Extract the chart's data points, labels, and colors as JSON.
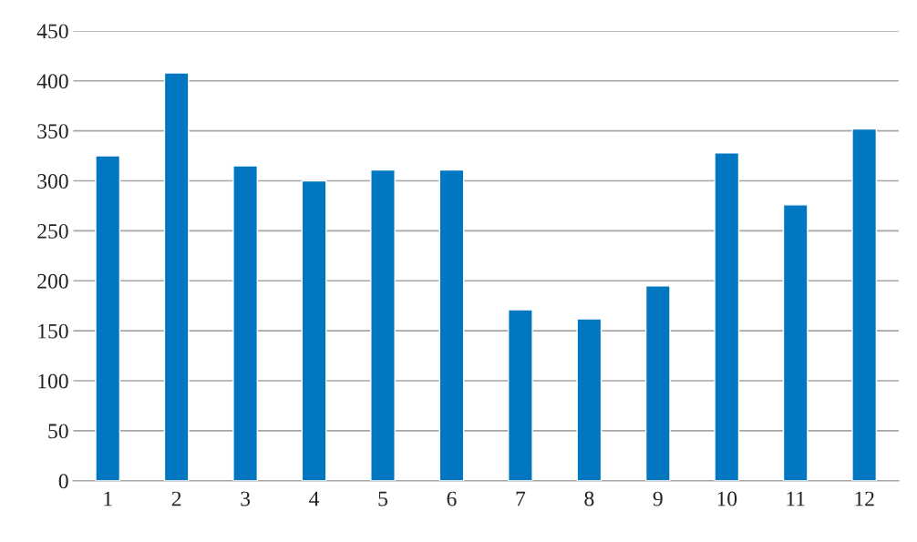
{
  "chart_data": {
    "type": "bar",
    "categories": [
      "1",
      "2",
      "3",
      "4",
      "5",
      "6",
      "7",
      "8",
      "9",
      "10",
      "11",
      "12"
    ],
    "values": [
      325,
      408,
      315,
      300,
      311,
      311,
      171,
      162,
      195,
      328,
      276,
      352
    ],
    "color": "#0077c0",
    "ylim": [
      0,
      450
    ],
    "yticks": [
      0,
      50,
      100,
      150,
      200,
      250,
      300,
      350,
      400,
      450
    ],
    "grid": "y"
  }
}
